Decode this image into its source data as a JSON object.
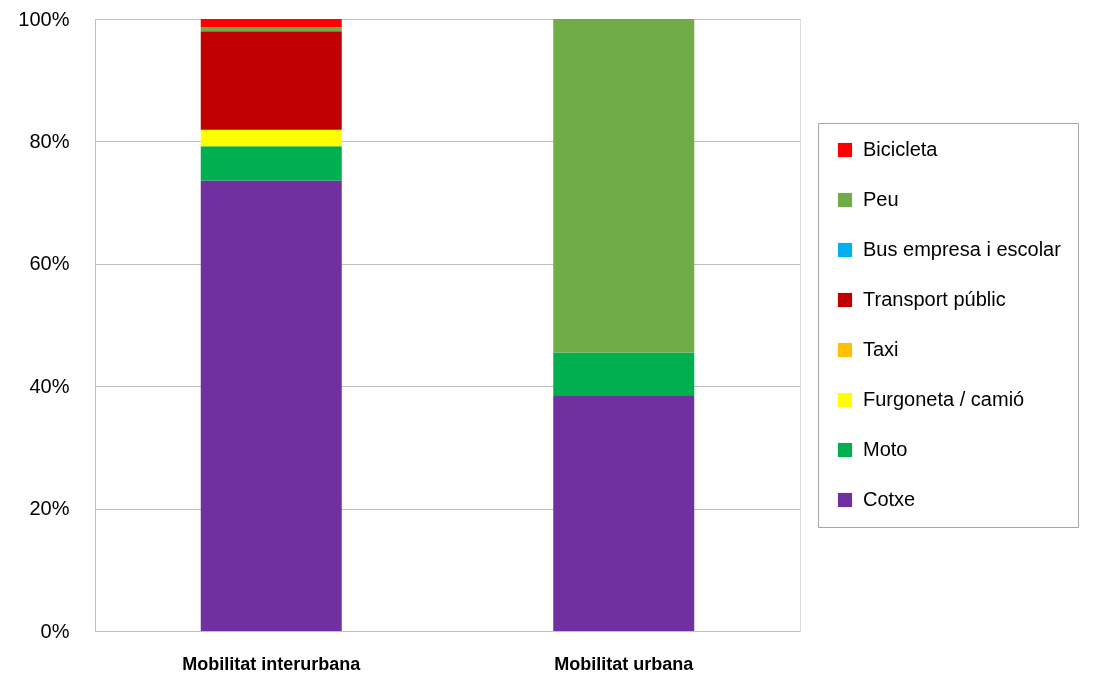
{
  "chart_data": {
    "type": "bar",
    "stacked": true,
    "categories": [
      "Mobilitat interurbana",
      "Mobilitat urbana"
    ],
    "series": [
      {
        "name": "Cotxe",
        "color": "#7030a0",
        "values": [
          73.6,
          38.4
        ]
      },
      {
        "name": "Moto",
        "color": "#00b050",
        "values": [
          5.6,
          7.1
        ]
      },
      {
        "name": "Furgoneta / camió",
        "color": "#ffff00",
        "values": [
          2.7,
          null
        ]
      },
      {
        "name": "Taxi",
        "color": "#ffc000",
        "values": [
          null,
          null
        ]
      },
      {
        "name": "Transport públic",
        "color": "#c00000",
        "values": [
          16.1,
          null
        ]
      },
      {
        "name": "Bus empresa i escolar",
        "color": "#00b0f0",
        "values": [
          null,
          null
        ]
      },
      {
        "name": "Peu",
        "color": "#70ad47",
        "values": [
          0.7,
          54.5
        ]
      },
      {
        "name": "Bicicleta",
        "color": "#ff0000",
        "values": [
          1.3,
          null
        ]
      }
    ],
    "ylim": [
      0,
      100
    ],
    "yticks": [
      {
        "value": 0,
        "label": "0%"
      },
      {
        "value": 20,
        "label": "20%"
      },
      {
        "value": 40,
        "label": "40%"
      },
      {
        "value": 60,
        "label": "60%"
      },
      {
        "value": 80,
        "label": "80%"
      },
      {
        "value": 100,
        "label": "100%"
      }
    ],
    "grid": "y",
    "legend": "right"
  }
}
